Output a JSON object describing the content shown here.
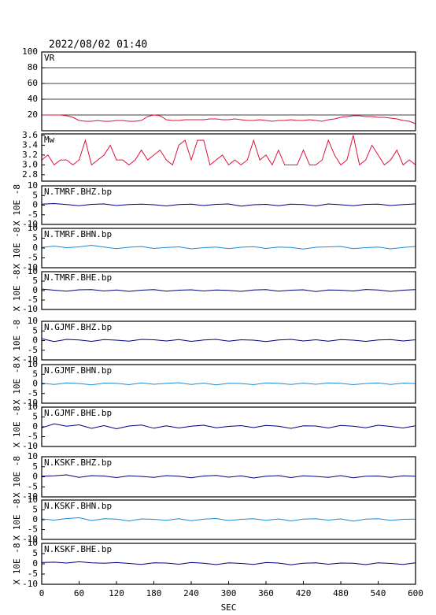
{
  "chart_data": [
    {
      "type": "line",
      "title": "2022/08/02 01:40",
      "label": "VR",
      "x": [
        0,
        10,
        20,
        30,
        40,
        50,
        60,
        70,
        80,
        90,
        100,
        110,
        120,
        130,
        140,
        150,
        160,
        170,
        180,
        190,
        200,
        210,
        220,
        230,
        240,
        250,
        260,
        270,
        280,
        290,
        300,
        310,
        320,
        330,
        340,
        350,
        360,
        370,
        380,
        390,
        400,
        410,
        420,
        430,
        440,
        450,
        460,
        470,
        480,
        490,
        500,
        510,
        520,
        530,
        540,
        550,
        560,
        570,
        580,
        590,
        600
      ],
      "xlim": [
        0,
        600
      ],
      "ylim": [
        0,
        100
      ],
      "yticks": [
        20,
        40,
        60,
        80,
        100
      ],
      "grid": true,
      "series": [
        {
          "color": "#e0103c",
          "values": [
            20,
            20,
            20,
            20,
            19,
            17,
            13,
            12,
            12,
            13,
            12,
            12,
            13,
            13,
            12,
            12,
            13,
            18,
            20,
            19,
            14,
            13,
            13,
            14,
            14,
            14,
            14,
            15,
            15,
            14,
            14,
            15,
            14,
            13,
            13,
            14,
            13,
            12,
            13,
            13,
            14,
            13,
            13,
            14,
            13,
            12,
            14,
            15,
            17,
            18,
            19,
            19,
            18,
            18,
            17,
            17,
            16,
            15,
            13,
            12,
            9
          ]
        }
      ]
    },
    {
      "type": "line",
      "label": "Mw",
      "x": [
        0,
        10,
        20,
        30,
        40,
        50,
        60,
        70,
        80,
        90,
        100,
        110,
        120,
        130,
        140,
        150,
        160,
        170,
        180,
        190,
        200,
        210,
        220,
        230,
        240,
        250,
        260,
        270,
        280,
        290,
        300,
        310,
        320,
        330,
        340,
        350,
        360,
        370,
        380,
        390,
        400,
        410,
        420,
        430,
        440,
        450,
        460,
        470,
        480,
        490,
        500,
        510,
        520,
        530,
        540,
        550,
        560,
        570,
        580,
        590,
        600
      ],
      "xlim": [
        0,
        600
      ],
      "ylim": [
        2.67,
        3.63
      ],
      "yticks": [
        {
          "value": 2.8,
          "label": "2.8"
        },
        {
          "value": 3.0,
          "label": "3.0"
        },
        3.2,
        3.4,
        3.6
      ],
      "grid": false,
      "series": [
        {
          "color": "#e0103c",
          "values": [
            3.1,
            3.2,
            3.0,
            3.1,
            3.1,
            3.0,
            3.1,
            3.5,
            3.0,
            3.1,
            3.2,
            3.4,
            3.1,
            3.1,
            3.0,
            3.1,
            3.3,
            3.1,
            3.2,
            3.3,
            3.1,
            3.0,
            3.4,
            3.5,
            3.1,
            3.5,
            3.5,
            3.0,
            3.1,
            3.2,
            3.0,
            3.1,
            3.0,
            3.1,
            3.5,
            3.1,
            3.2,
            3.0,
            3.3,
            3.0,
            3.0,
            3.0,
            3.3,
            3.0,
            3.0,
            3.1,
            3.5,
            3.2,
            3.0,
            3.1,
            3.6,
            3.0,
            3.1,
            3.4,
            3.2,
            3.0,
            3.1,
            3.3,
            3.0,
            3.1,
            3.0
          ]
        }
      ]
    },
    {
      "type": "line",
      "label": "N.TMRF.BHZ.bp",
      "ylabel": "X 10E -8",
      "x": [
        0,
        20,
        40,
        60,
        80,
        100,
        120,
        140,
        160,
        180,
        200,
        220,
        240,
        260,
        280,
        300,
        320,
        340,
        360,
        380,
        400,
        420,
        440,
        460,
        480,
        500,
        520,
        540,
        560,
        580,
        600
      ],
      "xlim": [
        0,
        600
      ],
      "ylim": [
        -10,
        10
      ],
      "yticks": [
        -10,
        -5,
        0,
        5,
        10
      ],
      "series": [
        {
          "color": "#00007f",
          "values": [
            0.5,
            0.8,
            0.3,
            -0.3,
            0.4,
            0.6,
            -0.2,
            0.3,
            0.5,
            0.2,
            -0.4,
            0.3,
            0.5,
            -0.2,
            0.4,
            0.6,
            -0.5,
            0.2,
            0.4,
            -0.3,
            0.5,
            0.3,
            -0.4,
            0.6,
            0.2,
            -0.3,
            0.4,
            0.5,
            -0.2,
            0.3,
            0.6
          ]
        }
      ]
    },
    {
      "type": "line",
      "label": "N.TMRF.BHN.bp",
      "ylabel": "X 10E -8",
      "x": [
        0,
        20,
        40,
        60,
        80,
        100,
        120,
        140,
        160,
        180,
        200,
        220,
        240,
        260,
        280,
        300,
        320,
        340,
        360,
        380,
        400,
        420,
        440,
        460,
        480,
        500,
        520,
        540,
        560,
        580,
        600
      ],
      "xlim": [
        0,
        600
      ],
      "ylim": [
        -10,
        10
      ],
      "yticks": [
        -10,
        -5,
        0,
        5,
        10
      ],
      "series": [
        {
          "color": "#1a8cd8",
          "values": [
            0.3,
            1.0,
            0.2,
            0.6,
            1.4,
            0.5,
            -0.3,
            0.4,
            0.8,
            -0.2,
            0.3,
            0.6,
            -0.4,
            0.2,
            0.5,
            -0.3,
            0.4,
            0.7,
            -0.2,
            0.5,
            0.3,
            -0.5,
            0.4,
            0.6,
            0.8,
            -0.3,
            0.2,
            0.5,
            -0.4,
            0.3,
            0.8
          ]
        }
      ]
    },
    {
      "type": "line",
      "label": "N.TMRF.BHE.bp",
      "ylabel": "X 10E -8",
      "x": [
        0,
        20,
        40,
        60,
        80,
        100,
        120,
        140,
        160,
        180,
        200,
        220,
        240,
        260,
        280,
        300,
        320,
        340,
        360,
        380,
        400,
        420,
        440,
        460,
        480,
        500,
        520,
        540,
        560,
        580,
        600
      ],
      "xlim": [
        0,
        600
      ],
      "ylim": [
        -10,
        10
      ],
      "yticks": [
        -10,
        -5,
        0,
        5,
        10
      ],
      "series": [
        {
          "color": "#00007f",
          "values": [
            0.8,
            0.2,
            -0.3,
            0.4,
            0.5,
            -0.2,
            0.3,
            -0.4,
            0.2,
            0.5,
            -0.3,
            0.2,
            0.4,
            -0.2,
            0.3,
            0.1,
            -0.4,
            0.3,
            0.5,
            -0.3,
            0.2,
            0.4,
            -0.5,
            0.3,
            0.2,
            -0.2,
            0.6,
            0.3,
            -0.4,
            0.2,
            0.5
          ]
        }
      ]
    },
    {
      "type": "line",
      "label": "N.GJMF.BHZ.bp",
      "ylabel": "X 10E -8",
      "x": [
        0,
        20,
        40,
        60,
        80,
        100,
        120,
        140,
        160,
        180,
        200,
        220,
        240,
        260,
        280,
        300,
        320,
        340,
        360,
        380,
        400,
        420,
        440,
        460,
        480,
        500,
        520,
        540,
        560,
        580,
        600
      ],
      "xlim": [
        0,
        600
      ],
      "ylim": [
        -10,
        10
      ],
      "yticks": [
        -10,
        -5,
        0,
        5,
        10
      ],
      "series": [
        {
          "color": "#00007f",
          "values": [
            1.0,
            -0.5,
            0.6,
            0.3,
            -0.4,
            0.5,
            0.2,
            -0.3,
            0.6,
            0.4,
            -0.2,
            0.5,
            -0.4,
            0.3,
            0.6,
            -0.3,
            0.4,
            0.2,
            -0.5,
            0.3,
            0.6,
            -0.2,
            0.4,
            -0.3,
            0.5,
            0.2,
            -0.4,
            0.3,
            0.5,
            -0.2,
            0.4
          ]
        }
      ]
    },
    {
      "type": "line",
      "label": "N.GJMF.BHN.bp",
      "ylabel": "X 10E -8",
      "x": [
        0,
        20,
        40,
        60,
        80,
        100,
        120,
        140,
        160,
        180,
        200,
        220,
        240,
        260,
        280,
        300,
        320,
        340,
        360,
        380,
        400,
        420,
        440,
        460,
        480,
        500,
        520,
        540,
        560,
        580,
        600
      ],
      "xlim": [
        0,
        600
      ],
      "ylim": [
        -10,
        10
      ],
      "yticks": [
        -10,
        -5,
        0,
        5,
        10
      ],
      "series": [
        {
          "color": "#1a8cd8",
          "values": [
            0.4,
            -0.3,
            0.5,
            0.2,
            -0.5,
            0.4,
            0.3,
            -0.4,
            0.5,
            -0.2,
            0.3,
            0.6,
            -0.3,
            0.4,
            -0.5,
            0.3,
            0.2,
            -0.4,
            0.5,
            0.3,
            -0.3,
            0.4,
            -0.2,
            0.5,
            0.3,
            -0.4,
            0.2,
            0.5,
            -0.3,
            0.4,
            0.2
          ]
        }
      ]
    },
    {
      "type": "line",
      "label": "N.GJMF.BHE.bp",
      "ylabel": "X 10E -8",
      "x": [
        0,
        20,
        40,
        60,
        80,
        100,
        120,
        140,
        160,
        180,
        200,
        220,
        240,
        260,
        280,
        300,
        320,
        340,
        360,
        380,
        400,
        420,
        440,
        460,
        480,
        500,
        520,
        540,
        560,
        580,
        600
      ],
      "xlim": [
        0,
        600
      ],
      "ylim": [
        -10,
        10
      ],
      "yticks": [
        -10,
        -5,
        0,
        5,
        10
      ],
      "series": [
        {
          "color": "#00007f",
          "values": [
            -0.5,
            1.5,
            0.3,
            1.0,
            -0.8,
            0.6,
            -1.0,
            0.4,
            0.9,
            -0.7,
            0.5,
            -0.6,
            0.3,
            0.8,
            -0.5,
            0.2,
            0.6,
            -0.4,
            0.7,
            0.3,
            -0.8,
            0.5,
            0.4,
            -0.6,
            0.7,
            0.3,
            -0.5,
            0.8,
            0.2,
            -0.6,
            0.5
          ]
        }
      ]
    },
    {
      "type": "line",
      "label": "N.KSKF.BHZ.bp",
      "ylabel": "X 10E -8",
      "x": [
        0,
        20,
        40,
        60,
        80,
        100,
        120,
        140,
        160,
        180,
        200,
        220,
        240,
        260,
        280,
        300,
        320,
        340,
        360,
        380,
        400,
        420,
        440,
        460,
        480,
        500,
        520,
        540,
        560,
        580,
        600
      ],
      "xlim": [
        0,
        600
      ],
      "ylim": [
        -10,
        10
      ],
      "yticks": [
        -10,
        -5,
        0,
        5,
        10
      ],
      "series": [
        {
          "color": "#00007f",
          "values": [
            0.3,
            0.5,
            1.0,
            -0.3,
            0.6,
            0.4,
            -0.4,
            0.5,
            0.2,
            -0.3,
            0.6,
            0.3,
            -0.5,
            0.4,
            0.7,
            -0.2,
            0.5,
            -0.6,
            0.3,
            0.6,
            -0.4,
            0.5,
            0.2,
            -0.3,
            0.6,
            -0.5,
            0.3,
            0.4,
            -0.3,
            0.5,
            0.3
          ]
        }
      ]
    },
    {
      "type": "line",
      "label": "N.KSKF.BHN.bp",
      "ylabel": "X 10E -8",
      "x": [
        0,
        20,
        40,
        60,
        80,
        100,
        120,
        140,
        160,
        180,
        200,
        220,
        240,
        260,
        280,
        300,
        320,
        340,
        360,
        380,
        400,
        420,
        440,
        460,
        480,
        500,
        520,
        540,
        560,
        580,
        600
      ],
      "xlim": [
        0,
        600
      ],
      "ylim": [
        -10,
        10
      ],
      "yticks": [
        -10,
        -5,
        0,
        5,
        10
      ],
      "series": [
        {
          "color": "#1a8cd8",
          "values": [
            0.4,
            -0.2,
            0.6,
            1.0,
            -0.4,
            0.5,
            0.3,
            -0.6,
            0.4,
            0.2,
            -0.3,
            0.5,
            -0.5,
            0.3,
            0.6,
            -0.4,
            0.2,
            0.5,
            -0.3,
            0.4,
            -0.6,
            0.3,
            0.5,
            -0.2,
            0.4,
            -0.7,
            0.3,
            0.5,
            -0.3,
            0.2,
            0.3
          ]
        }
      ]
    },
    {
      "type": "line",
      "label": "N.KSKF.BHE.bp",
      "ylabel": "X 10E -8",
      "xlabel": "SEC",
      "x": [
        0,
        20,
        40,
        60,
        80,
        100,
        120,
        140,
        160,
        180,
        200,
        220,
        240,
        260,
        280,
        300,
        320,
        340,
        360,
        380,
        400,
        420,
        440,
        460,
        480,
        500,
        520,
        540,
        560,
        580,
        600
      ],
      "xlim": [
        0,
        600
      ],
      "xticks": [
        0,
        60,
        120,
        180,
        240,
        300,
        360,
        420,
        480,
        540,
        600
      ],
      "ylim": [
        -10,
        10
      ],
      "yticks": [
        -10,
        -5,
        0,
        5,
        10
      ],
      "series": [
        {
          "color": "#00007f",
          "values": [
            0.6,
            0.8,
            0.4,
            1.0,
            0.5,
            0.3,
            0.6,
            0.2,
            -0.3,
            0.5,
            0.4,
            -0.2,
            0.6,
            0.3,
            -0.4,
            0.5,
            0.2,
            -0.3,
            0.6,
            0.4,
            -0.5,
            0.3,
            0.5,
            -0.2,
            0.4,
            0.3,
            -0.4,
            0.5,
            0.2,
            -0.3,
            0.5
          ]
        }
      ]
    }
  ]
}
